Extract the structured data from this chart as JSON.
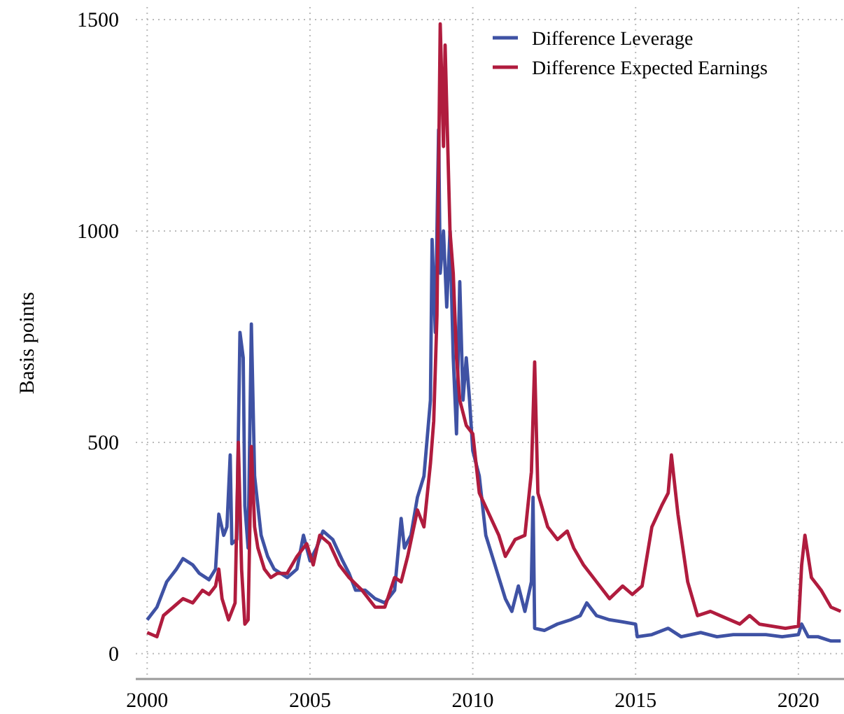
{
  "chart_data": {
    "type": "line",
    "ylabel": "Basis points",
    "xlim": [
      1999.65,
      2021.4
    ],
    "ylim": [
      -60,
      1530
    ],
    "xticks": [
      2000,
      2005,
      2010,
      2015,
      2020
    ],
    "yticks": [
      0,
      500,
      1000,
      1500
    ],
    "grid": true,
    "legend": "top right",
    "line_style": "solid",
    "marker": "none",
    "series": [
      {
        "name": "Difference Leverage",
        "color": "#3f52a4",
        "x": [
          2000.0,
          2000.3,
          2000.6,
          2000.9,
          2001.1,
          2001.4,
          2001.6,
          2001.9,
          2002.1,
          2002.2,
          2002.35,
          2002.45,
          2002.55,
          2002.6,
          2002.75,
          2002.85,
          2002.95,
          2003.0,
          2003.1,
          2003.2,
          2003.3,
          2003.4,
          2003.5,
          2003.7,
          2003.9,
          2004.1,
          2004.3,
          2004.6,
          2004.8,
          2005.0,
          2005.2,
          2005.4,
          2005.7,
          2006.0,
          2006.2,
          2006.4,
          2006.7,
          2007.0,
          2007.3,
          2007.6,
          2007.8,
          2007.9,
          2008.1,
          2008.3,
          2008.5,
          2008.7,
          2008.75,
          2008.85,
          2008.95,
          2009.0,
          2009.1,
          2009.2,
          2009.3,
          2009.4,
          2009.5,
          2009.6,
          2009.7,
          2009.8,
          2009.9,
          2010.0,
          2010.2,
          2010.4,
          2010.6,
          2010.8,
          2011.0,
          2011.2,
          2011.4,
          2011.6,
          2011.8,
          2011.85,
          2011.9,
          2012.2,
          2012.6,
          2013.0,
          2013.3,
          2013.5,
          2013.8,
          2014.2,
          2014.6,
          2015.0,
          2015.05,
          2015.5,
          2016.0,
          2016.4,
          2017.0,
          2017.5,
          2018.0,
          2018.5,
          2019.0,
          2019.5,
          2020.0,
          2020.1,
          2020.3,
          2020.6,
          2021.0,
          2021.3
        ],
        "values": [
          80,
          110,
          170,
          200,
          225,
          210,
          190,
          175,
          200,
          330,
          280,
          300,
          470,
          260,
          270,
          760,
          700,
          350,
          250,
          780,
          420,
          350,
          280,
          230,
          200,
          190,
          180,
          200,
          280,
          220,
          250,
          290,
          270,
          220,
          190,
          150,
          150,
          130,
          120,
          150,
          320,
          250,
          280,
          370,
          420,
          600,
          980,
          760,
          1240,
          900,
          1000,
          820,
          1000,
          700,
          520,
          880,
          600,
          700,
          600,
          480,
          420,
          280,
          230,
          180,
          130,
          100,
          160,
          100,
          170,
          370,
          60,
          55,
          70,
          80,
          90,
          120,
          90,
          80,
          75,
          70,
          40,
          45,
          60,
          40,
          50,
          40,
          45,
          45,
          45,
          40,
          45,
          70,
          40,
          40,
          30,
          30
        ]
      },
      {
        "name": "Difference Expected Earnings",
        "color": "#b01c3e",
        "x": [
          2000.0,
          2000.3,
          2000.5,
          2000.8,
          2001.1,
          2001.4,
          2001.7,
          2001.9,
          2002.1,
          2002.2,
          2002.3,
          2002.5,
          2002.7,
          2002.8,
          2002.9,
          2003.0,
          2003.1,
          2003.2,
          2003.3,
          2003.4,
          2003.6,
          2003.8,
          2004.0,
          2004.3,
          2004.6,
          2004.9,
          2005.1,
          2005.3,
          2005.6,
          2005.9,
          2006.2,
          2006.6,
          2007.0,
          2007.3,
          2007.6,
          2007.8,
          2008.0,
          2008.3,
          2008.5,
          2008.7,
          2008.8,
          2008.9,
          2009.0,
          2009.1,
          2009.15,
          2009.3,
          2009.4,
          2009.5,
          2009.6,
          2009.8,
          2010.0,
          2010.2,
          2010.5,
          2010.8,
          2011.0,
          2011.3,
          2011.6,
          2011.8,
          2011.9,
          2012.0,
          2012.3,
          2012.6,
          2012.9,
          2013.1,
          2013.4,
          2013.8,
          2014.2,
          2014.6,
          2014.9,
          2015.2,
          2015.5,
          2015.8,
          2016.0,
          2016.1,
          2016.3,
          2016.6,
          2016.9,
          2017.3,
          2017.6,
          2017.9,
          2018.2,
          2018.5,
          2018.8,
          2019.2,
          2019.6,
          2020.0,
          2020.1,
          2020.2,
          2020.4,
          2020.7,
          2021.0,
          2021.3
        ],
        "values": [
          50,
          40,
          90,
          110,
          130,
          120,
          150,
          140,
          160,
          200,
          130,
          80,
          120,
          500,
          200,
          70,
          80,
          490,
          300,
          250,
          200,
          180,
          190,
          190,
          230,
          260,
          210,
          280,
          260,
          210,
          180,
          150,
          110,
          110,
          180,
          170,
          230,
          340,
          300,
          450,
          550,
          800,
          1490,
          1200,
          1440,
          1000,
          900,
          700,
          600,
          540,
          520,
          380,
          330,
          280,
          230,
          270,
          280,
          430,
          690,
          380,
          300,
          270,
          290,
          250,
          210,
          170,
          130,
          160,
          140,
          160,
          300,
          350,
          380,
          470,
          330,
          170,
          90,
          100,
          90,
          80,
          70,
          90,
          70,
          65,
          60,
          65,
          210,
          280,
          180,
          150,
          110,
          100
        ]
      }
    ]
  }
}
